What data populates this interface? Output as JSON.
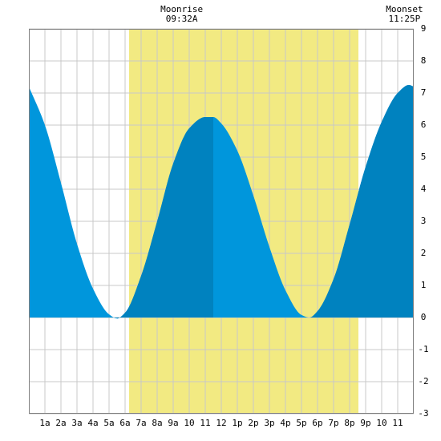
{
  "chart_data": {
    "type": "area",
    "title": "",
    "xlabel": "",
    "ylabel": "",
    "ylim": [
      -3,
      9
    ],
    "xlim": [
      0,
      24
    ],
    "yticks": [
      -3,
      -2,
      -1,
      0,
      1,
      2,
      3,
      4,
      5,
      6,
      7,
      8,
      9
    ],
    "xtick_labels": [
      "1a",
      "2a",
      "3a",
      "4a",
      "5a",
      "6a",
      "7a",
      "8a",
      "9a",
      "10",
      "11",
      "12",
      "1p",
      "2p",
      "3p",
      "4p",
      "5p",
      "6p",
      "7p",
      "8p",
      "9p",
      "10",
      "11"
    ],
    "xtick_hours": [
      1,
      2,
      3,
      4,
      5,
      6,
      7,
      8,
      9,
      10,
      11,
      12,
      13,
      14,
      15,
      16,
      17,
      18,
      19,
      20,
      21,
      22,
      23
    ],
    "grid": true,
    "highlight_band": {
      "start_hour": 6.25,
      "end_hour": 20.55,
      "color": "#f2ea82"
    },
    "series": [
      {
        "x": [
          0,
          1,
          2,
          3,
          4,
          5,
          5.5,
          6,
          7,
          8,
          9,
          10,
          11,
          11.5,
          12,
          13,
          14,
          15,
          16,
          17,
          17.5,
          18,
          19,
          20,
          21,
          22,
          23,
          23.7,
          24
        ],
        "values": [
          7.2,
          6.0,
          4.2,
          2.3,
          0.9,
          0.1,
          -0.03,
          0.15,
          1.3,
          3.0,
          4.8,
          5.9,
          6.25,
          6.25,
          6.05,
          5.2,
          3.8,
          2.2,
          0.85,
          0.08,
          0.0,
          0.2,
          1.2,
          2.9,
          4.7,
          6.1,
          7.0,
          7.25,
          7.2
        ],
        "fill_light": "#0096dc",
        "fill_dark": "#0082bf"
      }
    ],
    "dark_segments": [
      [
        5.5,
        11.5
      ],
      [
        17.5,
        24
      ]
    ],
    "annotations": [
      {
        "label": "Moonrise",
        "time": "09:32A",
        "hour": 9.53
      },
      {
        "label": "Moonset",
        "time": "11:25P",
        "hour": 23.42
      }
    ]
  }
}
